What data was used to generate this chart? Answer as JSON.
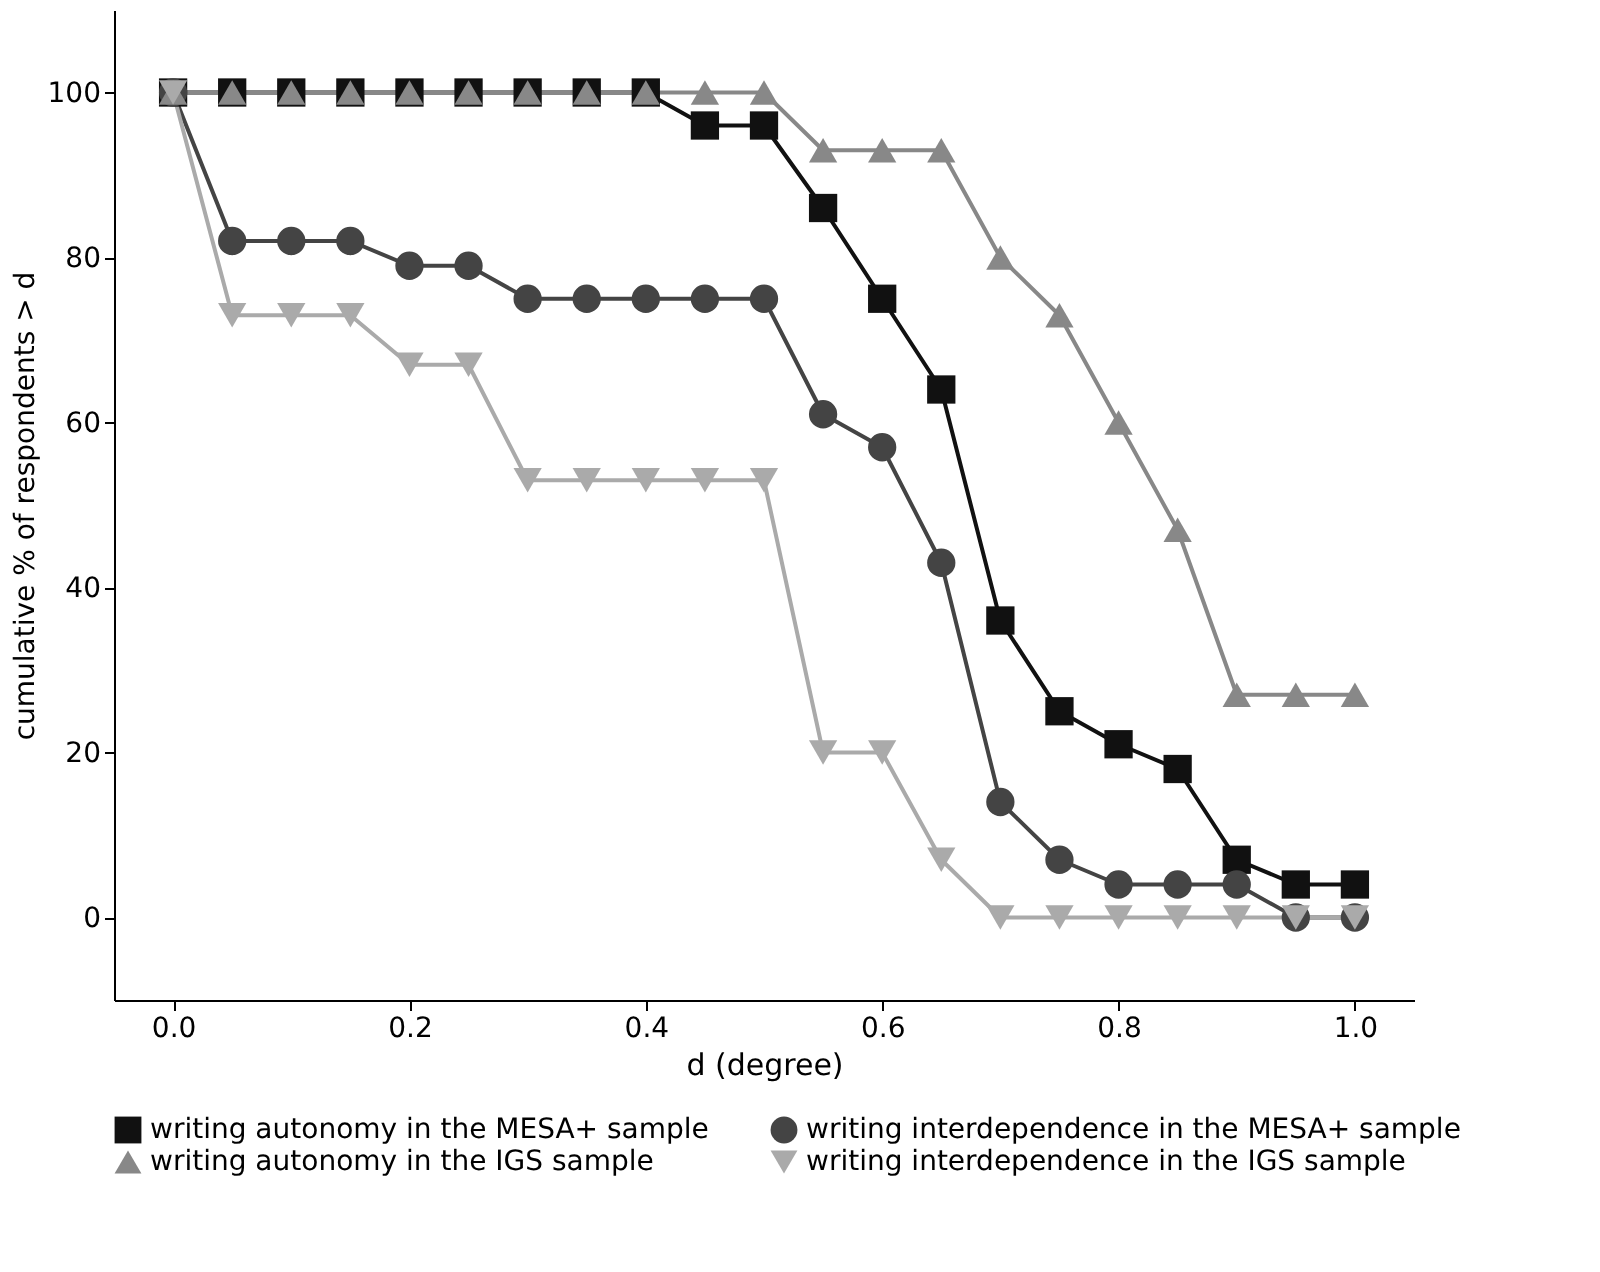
{
  "chart_data": {
    "type": "line",
    "xlabel": "d (degree)",
    "ylabel": "cumulative % of respondents > d",
    "x": [
      0,
      0.05,
      0.1,
      0.15,
      0.2,
      0.25,
      0.3,
      0.35,
      0.4,
      0.45,
      0.5,
      0.55,
      0.6,
      0.65,
      0.7,
      0.75,
      0.8,
      0.85,
      0.9,
      0.95,
      1.0
    ],
    "series": [
      {
        "name": "writing autonomy in the MESA+ sample",
        "color": "#111111",
        "marker": "square",
        "values": [
          100,
          100,
          100,
          100,
          100,
          100,
          100,
          100,
          100,
          96,
          96,
          86,
          75,
          64,
          36,
          25,
          21,
          18,
          7,
          4,
          4
        ]
      },
      {
        "name": "writing interdependence in the MESA+ sample",
        "color": "#444444",
        "marker": "circle",
        "values": [
          100,
          82,
          82,
          82,
          79,
          79,
          75,
          75,
          75,
          75,
          75,
          61,
          57,
          43,
          14,
          7,
          4,
          4,
          4,
          0,
          0
        ]
      },
      {
        "name": "writing autonomy in the IGS sample",
        "color": "#888888",
        "marker": "triangle",
        "values": [
          100,
          100,
          100,
          100,
          100,
          100,
          100,
          100,
          100,
          100,
          100,
          93,
          93,
          93,
          80,
          73,
          60,
          47,
          27,
          27,
          27
        ]
      },
      {
        "name": "writing interdependence in the IGS sample",
        "color": "#aaaaaa",
        "marker": "triangle-down",
        "values": [
          100,
          73,
          73,
          73,
          67,
          67,
          53,
          53,
          53,
          53,
          53,
          20,
          20,
          7,
          0,
          0,
          0,
          0,
          0,
          0,
          0
        ]
      }
    ],
    "xlim": [
      -0.05,
      1.05
    ],
    "ylim": [
      -10,
      110
    ],
    "xticks": [
      {
        "value": 0,
        "label": "0.0"
      },
      {
        "value": 0.2,
        "label": "0.2"
      },
      {
        "value": 0.4,
        "label": "0.4"
      },
      {
        "value": 0.6,
        "label": "0.6"
      },
      {
        "value": 0.8,
        "label": "0.8"
      },
      {
        "value": 1.0,
        "label": "1.0"
      }
    ],
    "yticks": [
      0,
      20,
      40,
      60,
      80,
      100
    ],
    "grid": false,
    "legend": "bottom",
    "line_style": "solid"
  }
}
